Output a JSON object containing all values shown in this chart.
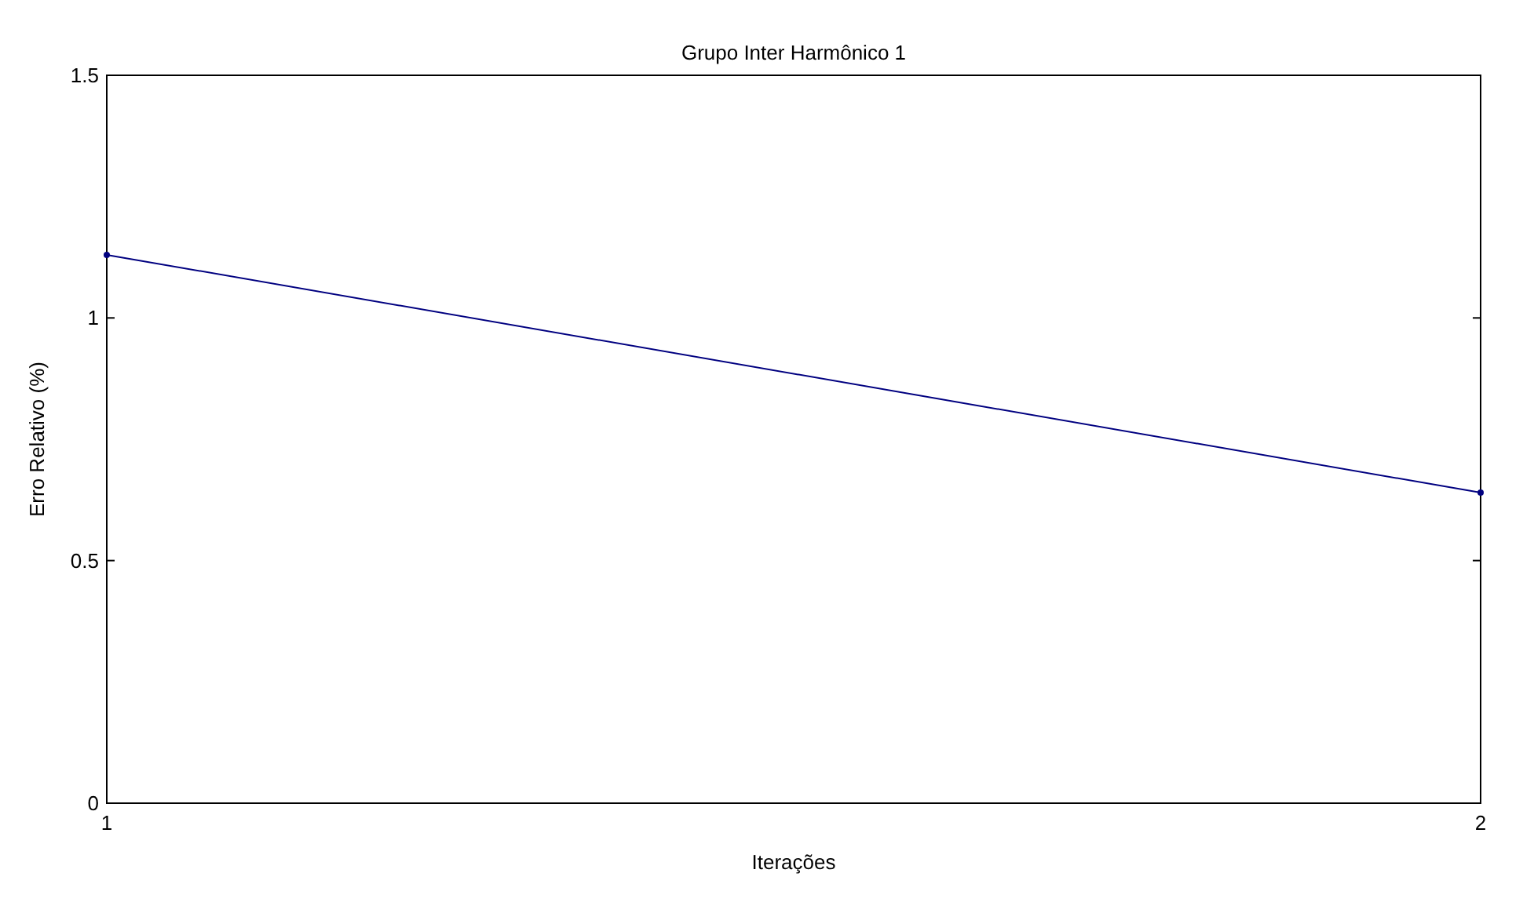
{
  "chart_data": {
    "type": "line",
    "title": "Grupo Inter Harmônico 1",
    "xlabel": "Iterações",
    "ylabel": "Erro Relativo (%)",
    "x": [
      1,
      2
    ],
    "series": [
      {
        "color": "#000080",
        "values": [
          1.13,
          0.64
        ]
      }
    ],
    "xlim": [
      1,
      2
    ],
    "xticks": [
      1,
      2
    ],
    "ylim": [
      0,
      1.5
    ],
    "yticks": [
      0,
      0.5,
      1,
      1.5
    ],
    "marker": "circle",
    "line_style": "solid"
  }
}
